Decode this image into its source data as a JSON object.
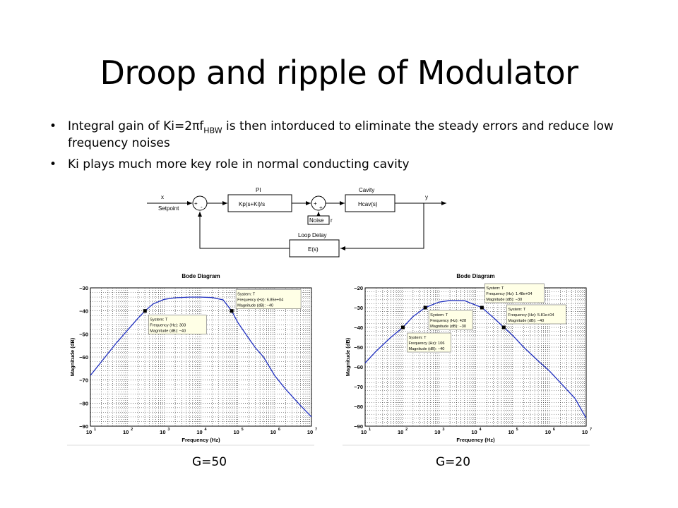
{
  "title": "Droop and ripple of Modulator",
  "bullets": [
    {
      "pre": "Integral gain of Ki=2πf",
      "sub": "HBW",
      "post": " is then intorduced to eliminate the steady errors and reduce low frequency noises"
    },
    {
      "pre": "Ki plays much more key role in normal conducting cavity",
      "sub": "",
      "post": ""
    }
  ],
  "bullet_glyph": "•",
  "block_diagram": {
    "input_label": "x",
    "setpoint_label": "Setpoint",
    "pi_label": "PI",
    "pi_tf": "Kp(s+Ki)/s",
    "cavity_label": "Cavity",
    "cavity_tf": "Hcav(s)",
    "output_label": "y",
    "noise_label": "Noise",
    "noise_symbol": "r",
    "delay_label": "Loop Delay",
    "delay_tf": "E(s)",
    "plus_sign": "+",
    "minus_sign": "-"
  },
  "captions": [
    "G=50",
    "G=20"
  ],
  "chart_data": [
    {
      "type": "line",
      "title": "Bode Diagram",
      "xlabel": "Frequency  (Hz)",
      "ylabel": "Magnitude (dB)",
      "xscale": "log",
      "xlim": [
        10,
        10000000
      ],
      "ylim": [
        -90,
        -30
      ],
      "xticks": [
        "10",
        "10",
        "10",
        "10",
        "10",
        "10",
        "10"
      ],
      "xtick_exp": [
        "1",
        "2",
        "3",
        "4",
        "5",
        "6",
        "7"
      ],
      "yticks": [
        "−30",
        "−40",
        "−50",
        "−60",
        "−70",
        "−80",
        "−90"
      ],
      "grid": true,
      "series": [
        {
          "x": [
            10,
            20,
            50,
            100,
            200,
            303,
            500,
            1000,
            2000,
            5000,
            10000,
            20000,
            40000,
            68500,
            100000,
            200000,
            300000,
            500000,
            1000000,
            2000000,
            5000000,
            10000000
          ],
          "y": [
            -68,
            -62,
            -54,
            -48.5,
            -43,
            -40,
            -37,
            -35,
            -34.3,
            -34,
            -34,
            -34.2,
            -35.2,
            -40,
            -45,
            -52,
            -56,
            -60,
            -68,
            -74,
            -81,
            -86
          ]
        }
      ],
      "markers": [
        {
          "x": 303,
          "y": -40
        },
        {
          "x": 68500,
          "y": -40
        }
      ],
      "annotations": [
        {
          "line1": "System: T",
          "line2": "Frequency (Hz): 303",
          "line3": "Magnitude (dB): −40"
        },
        {
          "line1": "System: T",
          "line2": "Frequency (Hz): 6.85e+04",
          "line3": "Magnitude (dB): −40"
        }
      ]
    },
    {
      "type": "line",
      "title": "Bode Diagram",
      "xlabel": "Frequency  (Hz)",
      "ylabel": "Magnitude (dB)",
      "xscale": "log",
      "xlim": [
        10,
        10000000
      ],
      "ylim": [
        -90,
        -20
      ],
      "xticks": [
        "10",
        "10",
        "10",
        "10",
        "10",
        "10",
        "10"
      ],
      "xtick_exp": [
        "1",
        "2",
        "3",
        "4",
        "5",
        "6",
        "7"
      ],
      "yticks": [
        "−20",
        "−30",
        "−40",
        "−50",
        "−60",
        "−70",
        "−80",
        "−90"
      ],
      "grid": true,
      "series": [
        {
          "x": [
            10,
            20,
            50,
            106,
            200,
            428,
            1000,
            2000,
            5000,
            14800,
            30000,
            58100,
            100000,
            200000,
            500000,
            1000000,
            2000000,
            5000000,
            10000000
          ],
          "y": [
            -58,
            -52,
            -45,
            -40,
            -34.5,
            -30,
            -27.2,
            -26.4,
            -26.5,
            -30,
            -35,
            -40,
            -44,
            -50,
            -57,
            -62,
            -68,
            -76,
            -86
          ]
        }
      ],
      "markers": [
        {
          "x": 106,
          "y": -40
        },
        {
          "x": 428,
          "y": -30
        },
        {
          "x": 14800,
          "y": -30
        },
        {
          "x": 58100,
          "y": -40
        }
      ],
      "annotations": [
        {
          "line1": "System: T",
          "line2": "Frequency (Hz): 106",
          "line3": "Magnitude (dB): −40"
        },
        {
          "line1": "System: T",
          "line2": "Frequency (Hz): 428",
          "line3": "Magnitude (dB): −30"
        },
        {
          "line1": "System: T",
          "line2": "Frequency (Hz): 1.48e+04",
          "line3": "Magnitude (dB): −30"
        },
        {
          "line1": "System: T",
          "line2": "Frequency (Hz): 5.81e+04",
          "line3": "Magnitude (dB): −40"
        }
      ]
    }
  ]
}
